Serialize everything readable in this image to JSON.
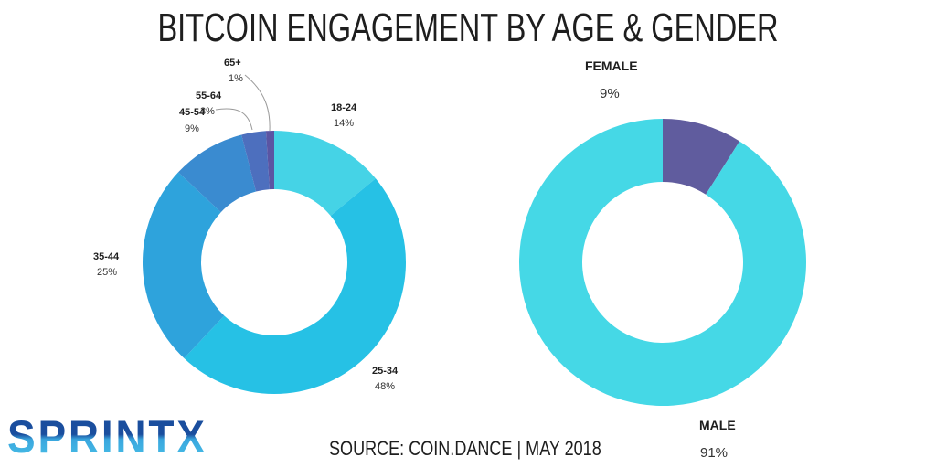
{
  "title": "BITCOIN ENGAGEMENT BY AGE & GENDER",
  "source": "SOURCE: COIN.DANCE | MAY 2018",
  "logo": {
    "text": "SPRINTX",
    "colors": [
      "#1a4e9e",
      "#49c3e8"
    ]
  },
  "chart_data": [
    {
      "type": "pie",
      "subtype": "donut",
      "categories": [
        "18-24",
        "25-34",
        "35-44",
        "45-54",
        "55-64",
        "65+"
      ],
      "values": [
        14,
        48,
        25,
        9,
        3,
        1
      ],
      "labels": [
        "14%",
        "48%",
        "25%",
        "9%",
        "3%",
        "1%"
      ],
      "colors": [
        "#45d3e6",
        "#26c1e5",
        "#2ea3dc",
        "#3a8bd0",
        "#4d6fbe",
        "#5b55a3"
      ]
    },
    {
      "type": "pie",
      "subtype": "donut",
      "categories": [
        "FEMALE",
        "MALE"
      ],
      "values": [
        9,
        91
      ],
      "labels": [
        "9%",
        "91%"
      ],
      "colors": [
        "#605c9e",
        "#45d8e6"
      ]
    }
  ]
}
